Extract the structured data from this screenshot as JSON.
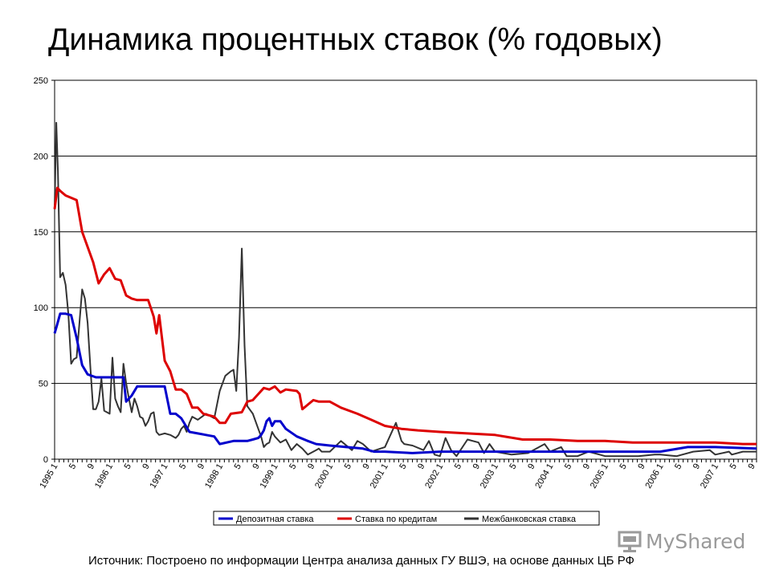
{
  "header": {
    "title": "Динамика процентных ставок (% годовых)"
  },
  "footer": {
    "source": "Источник: Построено по информации Центра анализа данных ГУ ВШЭ, на основе данных ЦБ РФ"
  },
  "watermark": {
    "text": "MyShared"
  },
  "chart_data": {
    "type": "line",
    "title": "",
    "xlabel": "",
    "ylabel": "",
    "ylim": [
      0,
      250
    ],
    "yticks": [
      0,
      50,
      100,
      150,
      200,
      250
    ],
    "grid": "horizontal",
    "legend_position": "bottom",
    "x_range": [
      1995,
      2007.75
    ],
    "x_tick_labels": [
      "1995 1",
      "5",
      "9",
      "1996 1",
      "5",
      "9",
      "1997 1",
      "5",
      "9",
      "1998 1",
      "5",
      "9",
      "1999 1",
      "5",
      "9",
      "2000 1",
      "5",
      "9",
      "2001 1",
      "5",
      "9",
      "2002 1",
      "5",
      "9",
      "2003 1",
      "5",
      "9",
      "2004 1",
      "5",
      "9",
      "2005 1",
      "5",
      "9",
      "2006 1",
      "5",
      "9",
      "2007 1",
      "5",
      "9"
    ],
    "series": [
      {
        "name": "Депозитная ставка",
        "color": "#0000cc",
        "x": [
          1995.0,
          1995.04,
          1995.1,
          1995.2,
          1995.3,
          1995.4,
          1995.5,
          1995.6,
          1995.75,
          1995.9,
          1996.0,
          1996.2,
          1996.25,
          1996.3,
          1996.4,
          1996.5,
          1996.6,
          1996.75,
          1996.9,
          1997.0,
          1997.1,
          1997.2,
          1997.3,
          1997.45,
          1997.6,
          1997.75,
          1997.9,
          1998.0,
          1998.25,
          1998.5,
          1998.6,
          1998.7,
          1998.75,
          1998.8,
          1998.85,
          1998.9,
          1998.95,
          1999.0,
          1999.1,
          1999.2,
          1999.4,
          1999.6,
          1999.75,
          2000.0,
          2000.3,
          2000.6,
          2000.8,
          2001.0,
          2001.5,
          2002.0,
          2003.0,
          2004.0,
          2005.0,
          2006.0,
          2006.5,
          2007.0,
          2007.75
        ],
        "y": [
          83,
          88,
          96,
          96,
          95,
          80,
          62,
          56,
          54,
          54,
          54,
          54,
          54,
          38,
          42,
          48,
          48,
          48,
          48,
          48,
          30,
          30,
          27,
          18,
          17,
          16,
          15,
          10,
          12,
          12,
          13,
          14,
          16,
          19,
          25,
          27,
          22,
          25,
          25,
          20,
          15,
          12,
          10,
          9,
          8,
          7,
          5,
          5,
          4,
          5,
          5,
          5,
          5,
          5,
          8,
          8,
          7
        ]
      },
      {
        "name": "Ставка по кредитам",
        "color": "#dd0000",
        "x": [
          1995.0,
          1995.05,
          1995.1,
          1995.2,
          1995.4,
          1995.5,
          1995.7,
          1995.8,
          1995.9,
          1996.0,
          1996.1,
          1996.2,
          1996.3,
          1996.4,
          1996.5,
          1996.7,
          1996.8,
          1996.85,
          1996.9,
          1997.0,
          1997.1,
          1997.2,
          1997.3,
          1997.4,
          1997.5,
          1997.6,
          1997.7,
          1997.9,
          1998.0,
          1998.1,
          1998.2,
          1998.4,
          1998.5,
          1998.6,
          1998.75,
          1998.8,
          1998.9,
          1999.0,
          1999.1,
          1999.2,
          1999.4,
          1999.45,
          1999.5,
          1999.7,
          1999.8,
          2000.0,
          2000.2,
          2000.5,
          2000.75,
          2001.0,
          2001.3,
          2001.6,
          2002.0,
          2002.5,
          2003.0,
          2003.5,
          2004.0,
          2004.5,
          2005.0,
          2005.5,
          2006.0,
          2006.5,
          2007.0,
          2007.5,
          2007.75
        ],
        "y": [
          165,
          179,
          177,
          174,
          171,
          150,
          130,
          116,
          122,
          126,
          119,
          118,
          108,
          106,
          105,
          105,
          94,
          83,
          95,
          65,
          58,
          46,
          46,
          43,
          34,
          34,
          30,
          28,
          24,
          24,
          30,
          31,
          38,
          39,
          45,
          47,
          46,
          48,
          44,
          46,
          45,
          43,
          33,
          39,
          38,
          38,
          34,
          30,
          26,
          22,
          20,
          19,
          18,
          17,
          16,
          13,
          13,
          12,
          12,
          11,
          11,
          11,
          11,
          10,
          10
        ]
      },
      {
        "name": "Межбанковская ставка",
        "color": "#333333",
        "x": [
          1995.0,
          1995.03,
          1995.06,
          1995.1,
          1995.15,
          1995.2,
          1995.25,
          1995.3,
          1995.35,
          1995.4,
          1995.5,
          1995.55,
          1995.6,
          1995.65,
          1995.7,
          1995.75,
          1995.8,
          1995.85,
          1995.9,
          1996.0,
          1996.05,
          1996.1,
          1996.15,
          1996.2,
          1996.25,
          1996.3,
          1996.35,
          1996.4,
          1996.45,
          1996.5,
          1996.55,
          1996.6,
          1996.65,
          1996.7,
          1996.75,
          1996.8,
          1996.85,
          1996.9,
          1997.0,
          1997.1,
          1997.2,
          1997.25,
          1997.3,
          1997.35,
          1997.4,
          1997.45,
          1997.5,
          1997.6,
          1997.75,
          1997.9,
          1998.0,
          1998.1,
          1998.2,
          1998.25,
          1998.3,
          1998.35,
          1998.4,
          1998.45,
          1998.5,
          1998.6,
          1998.7,
          1998.75,
          1998.8,
          1998.85,
          1998.9,
          1998.95,
          1999.0,
          1999.1,
          1999.2,
          1999.3,
          1999.4,
          1999.5,
          1999.6,
          1999.75,
          1999.8,
          1999.85,
          2000.0,
          2000.2,
          2000.4,
          2000.5,
          2000.6,
          2000.75,
          2001.0,
          2001.2,
          2001.3,
          2001.35,
          2001.5,
          2001.7,
          2001.8,
          2001.9,
          2002.0,
          2002.1,
          2002.2,
          2002.25,
          2002.3,
          2002.5,
          2002.7,
          2002.8,
          2002.9,
          2003.0,
          2003.3,
          2003.6,
          2003.9,
          2004.0,
          2004.2,
          2004.3,
          2004.5,
          2004.7,
          2004.9,
          2005.0,
          2005.3,
          2005.6,
          2005.9,
          2006.0,
          2006.3,
          2006.6,
          2006.9,
          2007.0,
          2007.25,
          2007.3,
          2007.5,
          2007.75
        ],
        "y": [
          165,
          222,
          190,
          120,
          123,
          115,
          96,
          63,
          66,
          67,
          112,
          106,
          90,
          60,
          33,
          33,
          38,
          53,
          32,
          30,
          67,
          40,
          35,
          31,
          63,
          50,
          40,
          31,
          40,
          35,
          28,
          27,
          22,
          25,
          30,
          31,
          18,
          16,
          17,
          16,
          14,
          16,
          20,
          22,
          18,
          24,
          28,
          26,
          30,
          27,
          45,
          55,
          58,
          59,
          45,
          80,
          139,
          75,
          35,
          30,
          20,
          15,
          8,
          10,
          11,
          18,
          15,
          11,
          13,
          6,
          10,
          7,
          3,
          6,
          7,
          5,
          5,
          12,
          6,
          12,
          10,
          5,
          8,
          24,
          12,
          10,
          9,
          6,
          12,
          3,
          2,
          14,
          6,
          4,
          2,
          13,
          11,
          4,
          10,
          5,
          3,
          4,
          10,
          5,
          8,
          2,
          2,
          5,
          3,
          2,
          2,
          2,
          3,
          3,
          2,
          5,
          6,
          3,
          5,
          3,
          5,
          5
        ]
      }
    ]
  }
}
